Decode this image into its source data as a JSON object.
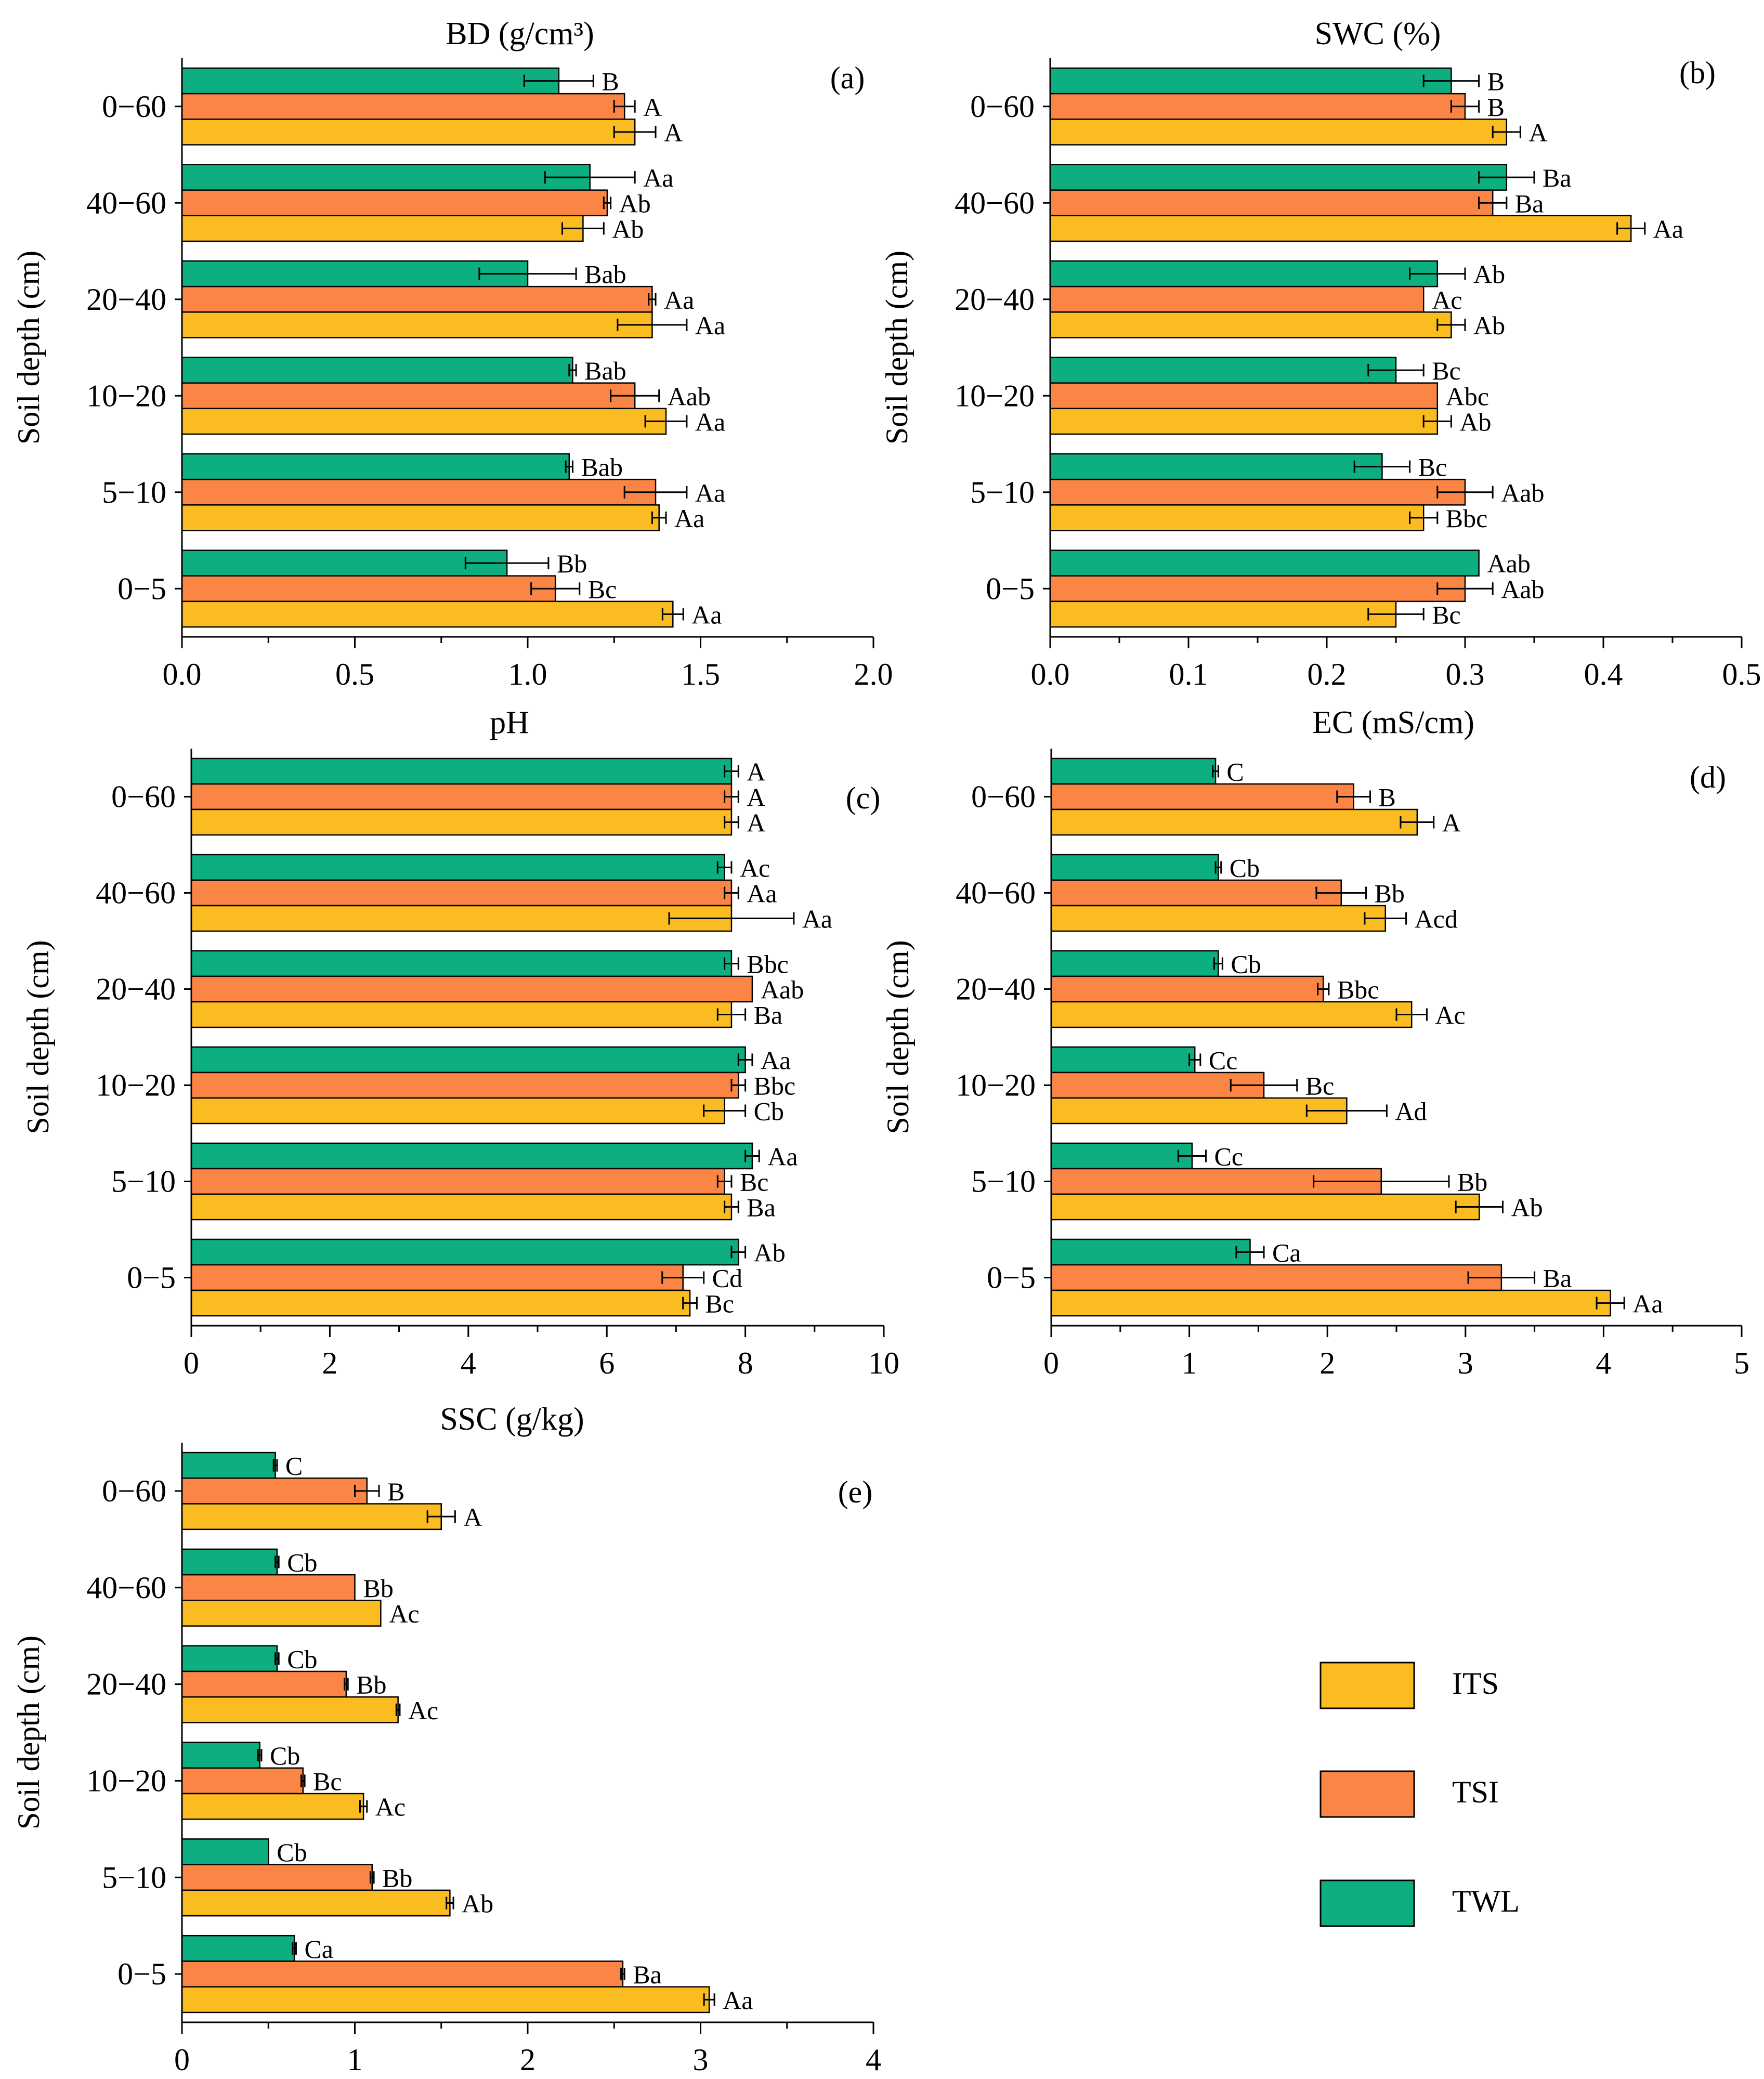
{
  "colors": {
    "ITS": "#FBBC22",
    "TSI": "#FA8545",
    "TWL": "#0DAF80",
    "axis": "#000000"
  },
  "legend": {
    "items": [
      {
        "key": "ITS",
        "label": "ITS"
      },
      {
        "key": "TSI",
        "label": "TSI"
      },
      {
        "key": "TWL",
        "label": "TWL"
      }
    ]
  },
  "chart_data": [
    {
      "id": "a",
      "type": "bar",
      "orientation": "horizontal",
      "title": "BD (g/cm³)",
      "panel_label": "(a)",
      "ylabel": "Soil depth (cm)",
      "categories": [
        "0−5",
        "5−10",
        "10−20",
        "20−40",
        "40−60",
        "0−60"
      ],
      "xlim": [
        0,
        2.0
      ],
      "xticks": [
        0.0,
        0.5,
        1.0,
        1.5,
        2.0
      ],
      "xtick_labels": [
        "0.0",
        "0.5",
        "1.0",
        "1.5",
        "2.0"
      ],
      "series": [
        {
          "name": "ITS",
          "values": [
            1.42,
            1.38,
            1.4,
            1.36,
            1.16,
            1.31
          ],
          "errors": [
            0.03,
            0.02,
            0.06,
            0.1,
            0.06,
            0.06
          ],
          "labels": [
            "Aa",
            "Aa",
            "Aa",
            "Aa",
            "Ab",
            "A"
          ]
        },
        {
          "name": "TSI",
          "values": [
            1.08,
            1.37,
            1.31,
            1.36,
            1.23,
            1.28
          ],
          "errors": [
            0.07,
            0.09,
            0.07,
            0.01,
            0.01,
            0.03
          ],
          "labels": [
            "Bc",
            "Aa",
            "Aab",
            "Aa",
            "Ab",
            "A"
          ]
        },
        {
          "name": "TWL",
          "values": [
            0.94,
            1.12,
            1.13,
            1.0,
            1.18,
            1.09
          ],
          "errors": [
            0.12,
            0.01,
            0.01,
            0.14,
            0.13,
            0.1
          ],
          "labels": [
            "Bb",
            "Bab",
            "Bab",
            "Bab",
            "Aa",
            "B"
          ]
        }
      ]
    },
    {
      "id": "b",
      "type": "bar",
      "orientation": "horizontal",
      "title": "SWC  (%)",
      "panel_label": "(b)",
      "ylabel": "Soil depth (cm)",
      "categories": [
        "0−5",
        "5−10",
        "10−20",
        "20−40",
        "40−60",
        "0−60"
      ],
      "xlim": [
        0,
        0.5
      ],
      "xticks": [
        0.0,
        0.1,
        0.2,
        0.3,
        0.4,
        0.5
      ],
      "xtick_labels": [
        "0.0",
        "0.1",
        "0.2",
        "0.3",
        "0.4",
        "0.5"
      ],
      "series": [
        {
          "name": "ITS",
          "values": [
            0.25,
            0.27,
            0.28,
            0.29,
            0.42,
            0.33
          ],
          "errors": [
            0.02,
            0.01,
            0.01,
            0.01,
            0.01,
            0.01
          ],
          "labels": [
            "Bc",
            "Bbc",
            "Ab",
            "Ab",
            "Aa",
            "A"
          ]
        },
        {
          "name": "TSI",
          "values": [
            0.3,
            0.3,
            0.28,
            0.27,
            0.32,
            0.3
          ],
          "errors": [
            0.02,
            0.02,
            0.0,
            0.0,
            0.01,
            0.01
          ],
          "labels": [
            "Aab",
            "Aab",
            "Abc",
            "Ac",
            "Ba",
            "B"
          ]
        },
        {
          "name": "TWL",
          "values": [
            0.31,
            0.24,
            0.25,
            0.28,
            0.33,
            0.29
          ],
          "errors": [
            0.0,
            0.02,
            0.02,
            0.02,
            0.02,
            0.02
          ],
          "labels": [
            "Aab",
            "Bc",
            "Bc",
            "Ab",
            "Ba",
            "B"
          ]
        }
      ]
    },
    {
      "id": "c",
      "type": "bar",
      "orientation": "horizontal",
      "title": "pH",
      "panel_label": "(c)",
      "ylabel": "Soil depth (cm)",
      "categories": [
        "0−5",
        "5−10",
        "10−20",
        "20−40",
        "40−60",
        "0−60"
      ],
      "xlim": [
        0,
        10
      ],
      "xticks": [
        0,
        2,
        4,
        6,
        8,
        10
      ],
      "xtick_labels": [
        "0",
        "2",
        "4",
        "6",
        "8",
        "10"
      ],
      "series": [
        {
          "name": "ITS",
          "values": [
            7.2,
            7.8,
            7.7,
            7.8,
            7.8,
            7.8
          ],
          "errors": [
            0.1,
            0.1,
            0.3,
            0.2,
            0.9,
            0.1
          ],
          "labels": [
            "Bc",
            "Ba",
            "Cb",
            "Ba",
            "Aa",
            "A"
          ]
        },
        {
          "name": "TSI",
          "values": [
            7.1,
            7.7,
            7.9,
            8.1,
            7.8,
            7.8
          ],
          "errors": [
            0.3,
            0.1,
            0.1,
            0.0,
            0.1,
            0.1
          ],
          "labels": [
            "Cd",
            "Bc",
            "Bbc",
            "Aab",
            "Aa",
            "A"
          ]
        },
        {
          "name": "TWL",
          "values": [
            7.9,
            8.1,
            8.0,
            7.8,
            7.7,
            7.8
          ],
          "errors": [
            0.1,
            0.1,
            0.1,
            0.1,
            0.1,
            0.1
          ],
          "labels": [
            "Ab",
            "Aa",
            "Aa",
            "Bbc",
            "Ac",
            "A"
          ]
        }
      ]
    },
    {
      "id": "d",
      "type": "bar",
      "orientation": "horizontal",
      "title": "EC (mS/cm)",
      "panel_label": "(d)",
      "ylabel": "Soil depth (cm)",
      "categories": [
        "0−5",
        "5−10",
        "10−20",
        "20−40",
        "40−60",
        "0−60"
      ],
      "xlim": [
        0,
        5
      ],
      "xticks": [
        0,
        1,
        2,
        3,
        4,
        5
      ],
      "xtick_labels": [
        "0",
        "1",
        "2",
        "3",
        "4",
        "5"
      ],
      "series": [
        {
          "name": "ITS",
          "values": [
            4.05,
            3.1,
            2.14,
            2.61,
            2.42,
            2.65
          ],
          "errors": [
            0.1,
            0.17,
            0.29,
            0.11,
            0.15,
            0.12
          ],
          "labels": [
            "Aa",
            "Ab",
            "Ad",
            "Ac",
            "Acd",
            "A"
          ]
        },
        {
          "name": "TSI",
          "values": [
            3.26,
            2.39,
            1.54,
            1.97,
            2.1,
            2.19
          ],
          "errors": [
            0.24,
            0.49,
            0.24,
            0.04,
            0.18,
            0.12
          ],
          "labels": [
            "Ba",
            "Bb",
            "Bc",
            "Bbc",
            "Bb",
            "B"
          ]
        },
        {
          "name": "TWL",
          "values": [
            1.44,
            1.02,
            1.04,
            1.21,
            1.21,
            1.19
          ],
          "errors": [
            0.1,
            0.1,
            0.04,
            0.03,
            0.02,
            0.02
          ],
          "labels": [
            "Ca",
            "Cc",
            "Cc",
            "Cb",
            "Cb",
            "C"
          ]
        }
      ]
    },
    {
      "id": "e",
      "type": "bar",
      "orientation": "horizontal",
      "title": "SSC (g/kg)",
      "panel_label": "(e)",
      "ylabel": "Soil depth (cm)",
      "categories": [
        "0−5",
        "5−10",
        "10−20",
        "20−40",
        "40−60",
        "0−60"
      ],
      "xlim": [
        0,
        4
      ],
      "xticks": [
        0,
        1,
        2,
        3,
        4
      ],
      "xtick_labels": [
        "0",
        "1",
        "2",
        "3",
        "4"
      ],
      "series": [
        {
          "name": "ITS",
          "values": [
            3.05,
            1.55,
            1.05,
            1.25,
            1.15,
            1.5
          ],
          "errors": [
            0.03,
            0.02,
            0.02,
            0.01,
            0.0,
            0.08
          ],
          "labels": [
            "Aa",
            "Ab",
            "Ac",
            "Ac",
            "Ac",
            "A"
          ]
        },
        {
          "name": "TSI",
          "values": [
            2.55,
            1.1,
            0.7,
            0.95,
            1.0,
            1.07
          ],
          "errors": [
            0.01,
            0.01,
            0.01,
            0.01,
            0.0,
            0.07
          ],
          "labels": [
            "Ba",
            "Bb",
            "Bc",
            "Bb",
            "Bb",
            "B"
          ]
        },
        {
          "name": "TWL",
          "values": [
            0.65,
            0.5,
            0.45,
            0.55,
            0.55,
            0.54
          ],
          "errors": [
            0.01,
            0.0,
            0.01,
            0.01,
            0.01,
            0.01
          ],
          "labels": [
            "Ca",
            "Cb",
            "Cb",
            "Cb",
            "Cb",
            "C"
          ]
        }
      ]
    }
  ]
}
